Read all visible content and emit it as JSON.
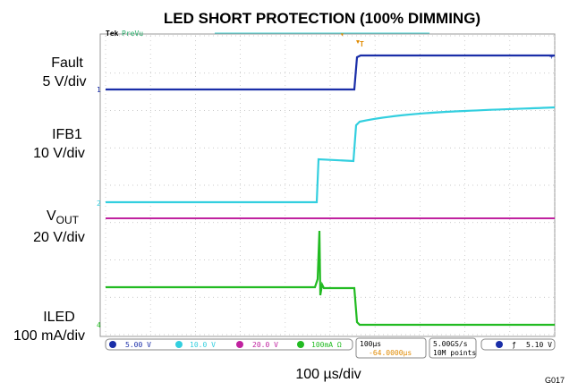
{
  "title": "LED SHORT PROTECTION (100% DIMMING)",
  "channels": [
    {
      "name": "Fault",
      "scale": "5 V/div"
    },
    {
      "name": "IFB1",
      "scale": "10 V/div"
    },
    {
      "name_base": "V",
      "name_sub": "OUT",
      "scale": "20 V/div"
    },
    {
      "name": "ILED",
      "scale": "100 mA/div"
    }
  ],
  "scope": {
    "brand": "Tek",
    "mode": "PreVu",
    "status": {
      "ch1": "5.00 V",
      "ch2": "10.0 V",
      "ch3": "20.0 V",
      "ch4": "100mA Ω",
      "timebase": "100µs",
      "delay": "-64.0000µs",
      "rate": "5.00GS/s",
      "points": "10M points",
      "trigger": "5.10 V"
    }
  },
  "time_scale": "100 µs/div",
  "figure_id": "G017"
}
